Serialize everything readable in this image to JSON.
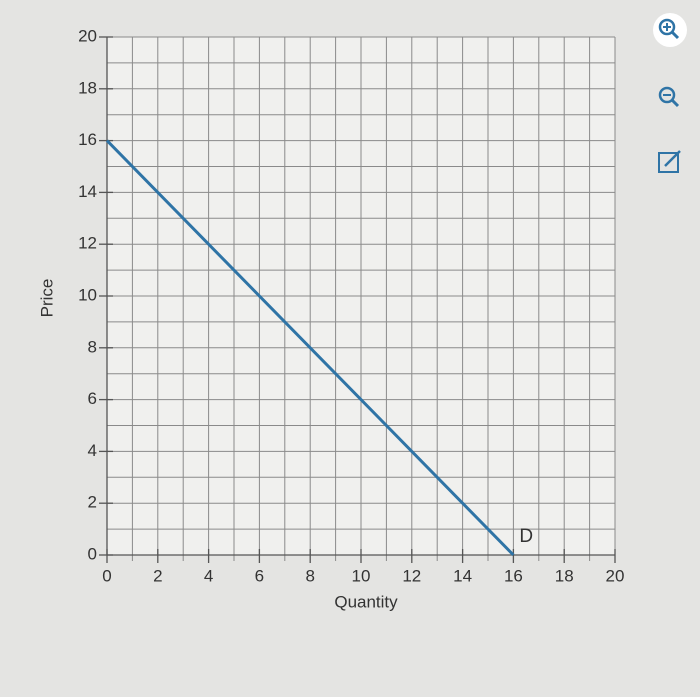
{
  "chart_data": {
    "type": "line",
    "x_label": "Quantity",
    "y_label": "Price",
    "x": [
      0,
      16
    ],
    "series": [
      {
        "name": "D",
        "color": "#2f74a6",
        "values": [
          16,
          0
        ]
      }
    ],
    "xlim": [
      0,
      20
    ],
    "ylim": [
      0,
      20
    ],
    "xticks": [
      0,
      2,
      4,
      6,
      8,
      10,
      12,
      14,
      16,
      18,
      20
    ],
    "yticks": [
      0,
      2,
      4,
      6,
      8,
      10,
      12,
      14,
      16,
      18,
      20
    ],
    "xminorticks": [
      1,
      3,
      5,
      7,
      9,
      11,
      13,
      15,
      17,
      19
    ],
    "yminorticks": [
      1,
      3,
      5,
      7,
      9,
      11,
      13,
      15,
      17,
      19
    ],
    "grid": true
  }
}
